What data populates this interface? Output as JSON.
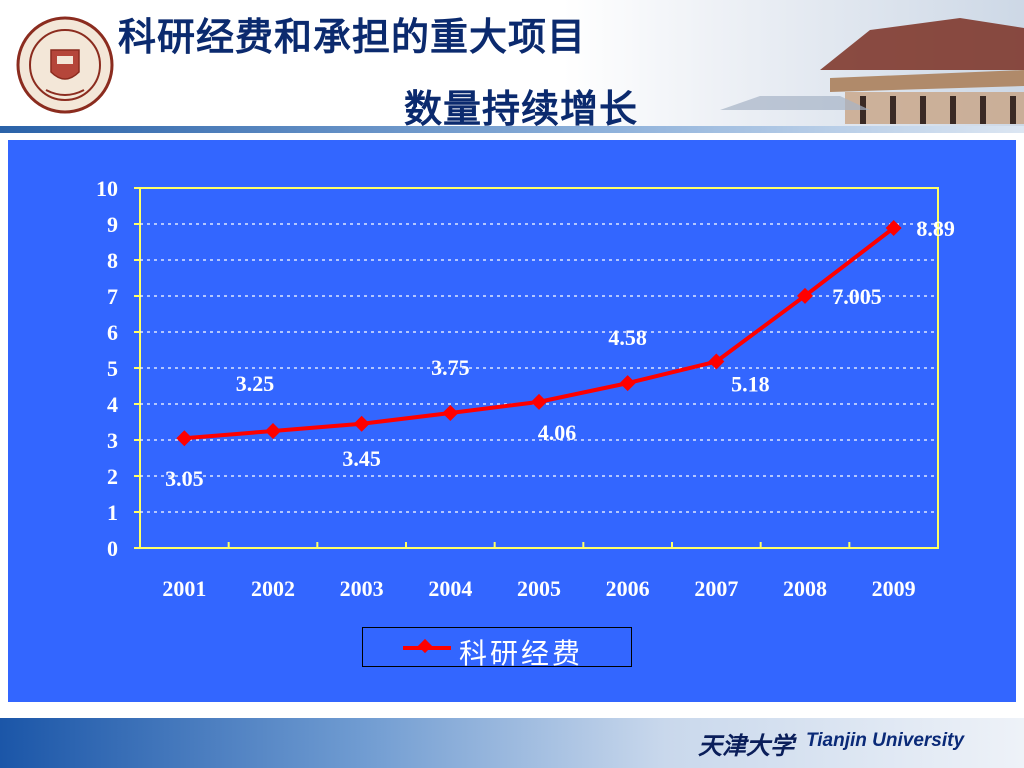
{
  "header": {
    "title_line1": "科研经费和承担的重大项目",
    "title_line2": "数量持续增长"
  },
  "footer": {
    "cn_name": "天津大学",
    "en_name": "Tianjin University"
  },
  "colors": {
    "title": "#0b2a6e",
    "chart_bg": "#3366ff",
    "plot_border": "#ffff66",
    "series_line": "#ff0000"
  },
  "chart_data": {
    "type": "line",
    "categories": [
      "2001",
      "2002",
      "2003",
      "2004",
      "2005",
      "2006",
      "2007",
      "2008",
      "2009"
    ],
    "series": [
      {
        "name": "科研经费",
        "values": [
          3.05,
          3.25,
          3.45,
          3.75,
          4.06,
          4.58,
          5.18,
          7.005,
          8.89
        ]
      }
    ],
    "data_labels": [
      "3.05",
      "3.25",
      "3.45",
      "3.75",
      "4.06",
      "4.58",
      "5.18",
      "7.005",
      "8.89"
    ],
    "y_ticks": [
      "0",
      "1",
      "2",
      "3",
      "4",
      "5",
      "6",
      "7",
      "8",
      "9",
      "10"
    ],
    "ylim": [
      0,
      10
    ],
    "grid": true,
    "legend_position": "bottom",
    "legend_label": "科研经费"
  }
}
